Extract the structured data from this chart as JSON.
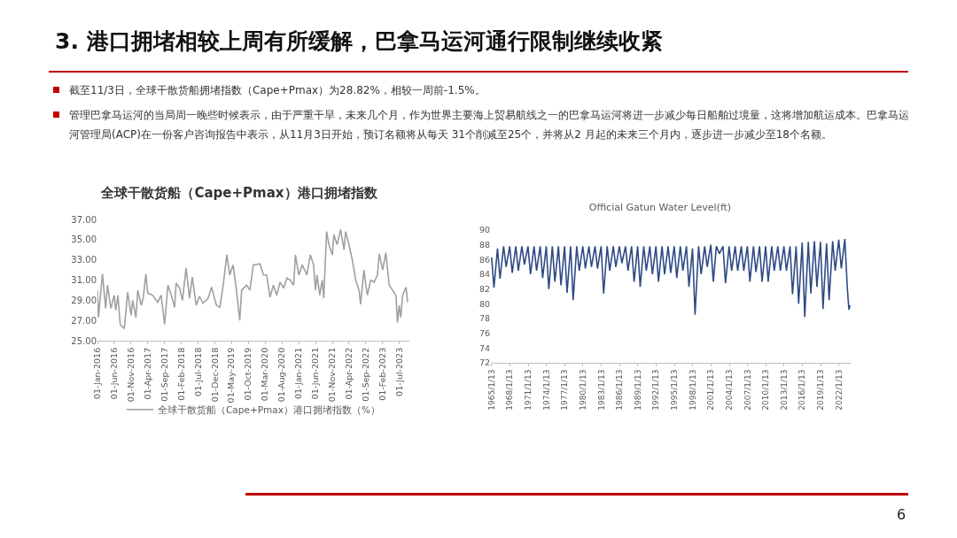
{
  "chart_data": [
    {
      "type": "line",
      "title": "全球干散货船（Cape+Pmax）港口拥堵指数",
      "annotations": [
        "3. 港口拥堵相较上周有所缓解，巴拿马运河通行限制继续收紧",
        "截至11/3日，全球干散货船拥堵指数（Cape+Pmax）为28.82%，相较一周前-1.5%。",
        "管理巴拿马运河的当局周一晚些时候表示，由于严重干旱，未来几个月，作为世界主要海上贸易航线之一的巴拿马运河将进一步减少每日船舶过境量，这将增加航运成本。巴拿马运河管理局(ACP)在一份客户咨询报告中表示，从11月3日开始，预订名额将从每天 31个削减至25个，并将从2 月起的未来三个月内，逐步进一步减少至18个名额。",
        "6"
      ],
      "x": [
        "2016-01-01",
        "2016-01-10",
        "2016-02-15",
        "2016-03-15",
        "2016-04-01",
        "2016-05-01",
        "2016-06-01",
        "2016-06-15",
        "2016-07-05",
        "2016-07-25",
        "2016-09-01",
        "2016-10-01",
        "2016-11-01",
        "2016-11-15",
        "2016-12-15",
        "2017-01-01",
        "2017-02-01",
        "2017-02-20",
        "2017-03-15",
        "2017-04-01",
        "2017-05-15",
        "2017-07-01",
        "2017-08-01",
        "2017-09-01",
        "2017-10-01",
        "2017-11-01",
        "2017-12-01",
        "2017-12-15",
        "2018-01-15",
        "2018-02-10",
        "2018-03-15",
        "2018-04-15",
        "2018-05-10",
        "2018-06-15",
        "2018-07-15",
        "2018-08-15",
        "2018-10-01",
        "2018-11-01",
        "2018-12-15",
        "2019-01-15",
        "2019-02-15",
        "2019-03-20",
        "2019-04-15",
        "2019-05-15",
        "2019-06-15",
        "2019-07-15",
        "2019-08-01",
        "2019-09-15",
        "2019-10-15",
        "2019-11-15",
        "2020-01-15",
        "2020-02-15",
        "2020-03-15",
        "2020-04-15",
        "2020-05-15",
        "2020-06-15",
        "2020-07-15",
        "2020-08-15",
        "2020-09-15",
        "2020-10-15",
        "2020-11-15",
        "2020-12-01",
        "2021-01-01",
        "2021-02-01",
        "2021-03-15",
        "2021-04-15",
        "2021-05-15",
        "2021-06-01",
        "2021-06-15",
        "2021-07-10",
        "2021-08-01",
        "2021-08-15",
        "2021-09-10",
        "2021-10-01",
        "2021-11-01",
        "2021-11-15",
        "2021-12-15",
        "2022-01-15",
        "2022-02-15",
        "2022-03-01",
        "2022-04-01",
        "2022-05-01",
        "2022-06-01",
        "2022-07-01",
        "2022-07-15",
        "2022-08-15",
        "2022-09-01",
        "2022-09-15",
        "2022-10-15",
        "2022-11-15",
        "2022-12-15",
        "2023-01-01",
        "2023-02-01",
        "2023-03-01",
        "2023-04-01",
        "2023-05-01",
        "2023-06-01",
        "2023-06-15",
        "2023-07-01",
        "2023-07-15",
        "2023-08-01",
        "2023-09-01",
        "2023-09-15"
      ],
      "series": [
        {
          "name": "全球干散货船（Cape+Pmax）港口拥堵指数（%）",
          "color": "#a0a0a0",
          "values": [
            30,
            27.3,
            31.6,
            28.2,
            30.5,
            28.2,
            29.5,
            28,
            29.5,
            26.6,
            26.2,
            29.8,
            27.5,
            29,
            27.3,
            30,
            28.5,
            29.3,
            31.6,
            29.7,
            29.5,
            28.8,
            29.5,
            26.6,
            30.5,
            29.5,
            28.3,
            30.7,
            30.2,
            29,
            32.2,
            29.2,
            31.3,
            28.5,
            29.4,
            28.7,
            29.2,
            30.3,
            28.5,
            28.3,
            30.5,
            33.5,
            31.5,
            32.5,
            30,
            27,
            30,
            30.5,
            30,
            32.5,
            32.6,
            31.5,
            31.5,
            29.3,
            30.5,
            29.5,
            30.8,
            30.2,
            31.2,
            31,
            30.5,
            33.5,
            31.5,
            32.5,
            31.5,
            33.5,
            32.5,
            30,
            31.5,
            29.5,
            31,
            29.2,
            35.8,
            34.5,
            33.5,
            35.5,
            34.5,
            36,
            34,
            35.8,
            34.5,
            33,
            31,
            30,
            28.6,
            32,
            30.5,
            29.5,
            31,
            30.8,
            31.5,
            33.6,
            32,
            33.7,
            30.5,
            30,
            29.5,
            26.8,
            28.5,
            27.3,
            29.5,
            30.3,
            28.8
          ]
        }
      ],
      "xlim": [
        "2016-01-01",
        "2023-10-01"
      ],
      "xticks": [
        {
          "value": "2016-01-01",
          "label": "01-Jan-2016"
        },
        {
          "value": "2016-06-01",
          "label": "01-Jun-2016"
        },
        {
          "value": "2016-11-01",
          "label": "01-Nov-2016"
        },
        {
          "value": "2017-04-01",
          "label": "01-Apr-2017"
        },
        {
          "value": "2017-09-01",
          "label": "01-Sep-2017"
        },
        {
          "value": "2018-02-01",
          "label": "01-Feb-2018"
        },
        {
          "value": "2018-07-01",
          "label": "01-Jul-2018"
        },
        {
          "value": "2018-12-01",
          "label": "01-Dec-2018"
        },
        {
          "value": "2019-05-01",
          "label": "01-May-2019"
        },
        {
          "value": "2019-10-01",
          "label": "01-Oct-2019"
        },
        {
          "value": "2020-03-01",
          "label": "01-Mar-2020"
        },
        {
          "value": "2020-08-01",
          "label": "01-Aug-2020"
        },
        {
          "value": "2021-01-01",
          "label": "01-Jan-2021"
        },
        {
          "value": "2021-06-01",
          "label": "01-Jun-2021"
        },
        {
          "value": "2021-11-01",
          "label": "01-Nov-2021"
        },
        {
          "value": "2022-04-01",
          "label": "01-Apr-2022"
        },
        {
          "value": "2022-09-01",
          "label": "01-Sep-2022"
        },
        {
          "value": "2023-02-01",
          "label": "01-Feb-2023"
        },
        {
          "value": "2023-07-01",
          "label": "01-Jul-2023"
        }
      ],
      "ylim": [
        25,
        37
      ],
      "yticks": [
        {
          "value": 25,
          "label": "25.00"
        },
        {
          "value": 27,
          "label": "27.00"
        },
        {
          "value": 29,
          "label": "29.00"
        },
        {
          "value": 31,
          "label": "31.00"
        },
        {
          "value": 33,
          "label": "33.00"
        },
        {
          "value": 35,
          "label": "35.00"
        },
        {
          "value": 37,
          "label": "37.00"
        }
      ],
      "legend": "bottom",
      "grid": false,
      "marker": "none",
      "line_style": "solid"
    },
    {
      "type": "line",
      "title": "Official Gatun Water Level(ft)",
      "x": [
        "1965-01-13",
        "1965-06",
        "1966-01",
        "1966-06",
        "1967-01",
        "1967-06",
        "1968-01",
        "1968-06",
        "1969-01",
        "1969-06",
        "1970-01",
        "1970-06",
        "1971-01",
        "1971-06",
        "1972-01",
        "1972-06",
        "1973-01",
        "1973-06",
        "1974-01",
        "1974-06",
        "1975-01",
        "1975-06",
        "1976-01",
        "1976-06",
        "1977-01",
        "1977-06",
        "1978-01",
        "1978-06",
        "1979-01",
        "1979-06",
        "1980-01",
        "1980-06",
        "1981-01",
        "1981-06",
        "1982-01",
        "1982-06",
        "1983-01",
        "1983-06",
        "1984-01",
        "1984-06",
        "1985-01",
        "1985-06",
        "1986-01",
        "1986-06",
        "1987-01",
        "1987-06",
        "1988-01",
        "1988-06",
        "1989-01",
        "1989-06",
        "1990-01",
        "1990-06",
        "1991-01",
        "1991-06",
        "1992-01",
        "1992-06",
        "1993-01",
        "1993-06",
        "1994-01",
        "1994-06",
        "1995-01",
        "1995-06",
        "1996-01",
        "1996-06",
        "1997-01",
        "1997-06",
        "1998-01",
        "1998-06",
        "1999-01",
        "1999-06",
        "2000-01",
        "2000-06",
        "2001-01",
        "2001-06",
        "2001-12",
        "2002-06",
        "2003-01",
        "2003-06",
        "2004-01",
        "2004-06",
        "2005-01",
        "2005-06",
        "2006-01",
        "2006-06",
        "2007-01",
        "2007-06",
        "2008-01",
        "2008-06",
        "2009-01",
        "2009-06",
        "2010-01",
        "2010-06",
        "2011-01",
        "2011-06",
        "2012-01",
        "2012-06",
        "2013-01",
        "2013-06",
        "2014-01",
        "2014-06",
        "2015-01",
        "2015-06",
        "2016-01",
        "2016-06",
        "2017-01",
        "2017-06",
        "2018-01",
        "2018-06",
        "2019-01",
        "2019-06",
        "2020-01",
        "2020-06",
        "2021-01",
        "2021-06",
        "2022-01",
        "2022-06",
        "2023-01",
        "2023-06",
        "2023-09",
        "2023-11"
      ],
      "series": [
        {
          "color": "#2e4a86",
          "values": [
            86.3,
            82.2,
            87.5,
            83.4,
            87.8,
            85,
            87.8,
            84.2,
            87.8,
            84.5,
            87.8,
            85.3,
            87.8,
            84,
            87.8,
            84.5,
            87.8,
            83.5,
            87.8,
            82,
            87.8,
            83,
            87.8,
            82.5,
            87.8,
            81.5,
            87.8,
            80.5,
            87.8,
            84.5,
            87.8,
            84.8,
            87.8,
            85,
            87.8,
            84.8,
            87.8,
            81.4,
            87.8,
            84.5,
            87.8,
            85,
            87.8,
            85.5,
            87.8,
            84.5,
            87.8,
            83,
            87.8,
            82.3,
            87.8,
            84.5,
            87.8,
            84,
            87.8,
            83,
            87.8,
            84,
            87.8,
            84.2,
            87.8,
            83.5,
            87.8,
            84.5,
            87.8,
            82.3,
            87.5,
            78.5,
            87.8,
            84,
            87.8,
            85,
            88,
            83,
            87.8,
            86.8,
            87.8,
            82.8,
            87.8,
            84.5,
            87.8,
            84.5,
            87.8,
            84.5,
            87.8,
            83,
            87.8,
            84.3,
            87.8,
            83,
            87.8,
            83,
            87.8,
            84.5,
            87.8,
            84.5,
            87.8,
            84.5,
            87.8,
            81.3,
            87.8,
            80,
            88.3,
            78.2,
            88.4,
            81.4,
            88.5,
            82.3,
            88.4,
            79.3,
            88.2,
            80.5,
            88.5,
            84.5,
            88.7,
            84.8,
            88.8,
            82,
            79.2,
            79.8
          ]
        }
      ],
      "xlim": [
        "1964-12-01",
        "2023-12-15"
      ],
      "xticks": [
        {
          "value": "1965-01-13",
          "label": "1965/1/13"
        },
        {
          "value": "1968-01-13",
          "label": "1968/1/13"
        },
        {
          "value": "1971-01-13",
          "label": "1971/1/13"
        },
        {
          "value": "1974-01-13",
          "label": "1974/1/13"
        },
        {
          "value": "1977-01-13",
          "label": "1977/1/13"
        },
        {
          "value": "1980-01-13",
          "label": "1980/1/13"
        },
        {
          "value": "1983-01-13",
          "label": "1983/1/13"
        },
        {
          "value": "1986-01-13",
          "label": "1986/1/13"
        },
        {
          "value": "1989-01-13",
          "label": "1989/1/13"
        },
        {
          "value": "1992-01-13",
          "label": "1992/1/13"
        },
        {
          "value": "1995-01-13",
          "label": "1995/1/13"
        },
        {
          "value": "1998-01-13",
          "label": "1998/1/13"
        },
        {
          "value": "2001-01-13",
          "label": "2001/1/13"
        },
        {
          "value": "2004-01-13",
          "label": "2004/1/13"
        },
        {
          "value": "2007-01-13",
          "label": "2007/1/13"
        },
        {
          "value": "2010-01-13",
          "label": "2010/1/13"
        },
        {
          "value": "2013-01-13",
          "label": "2013/1/13"
        },
        {
          "value": "2016-01-13",
          "label": "2016/1/13"
        },
        {
          "value": "2019-01-13",
          "label": "2019/1/13"
        },
        {
          "value": "2022-01-13",
          "label": "2022/1/13"
        }
      ],
      "ylim": [
        72,
        90
      ],
      "yticks": [
        72,
        74,
        76,
        78,
        80,
        82,
        84,
        86,
        88,
        90
      ],
      "legend": false,
      "grid": false,
      "marker": "none",
      "line_style": "solid"
    }
  ]
}
